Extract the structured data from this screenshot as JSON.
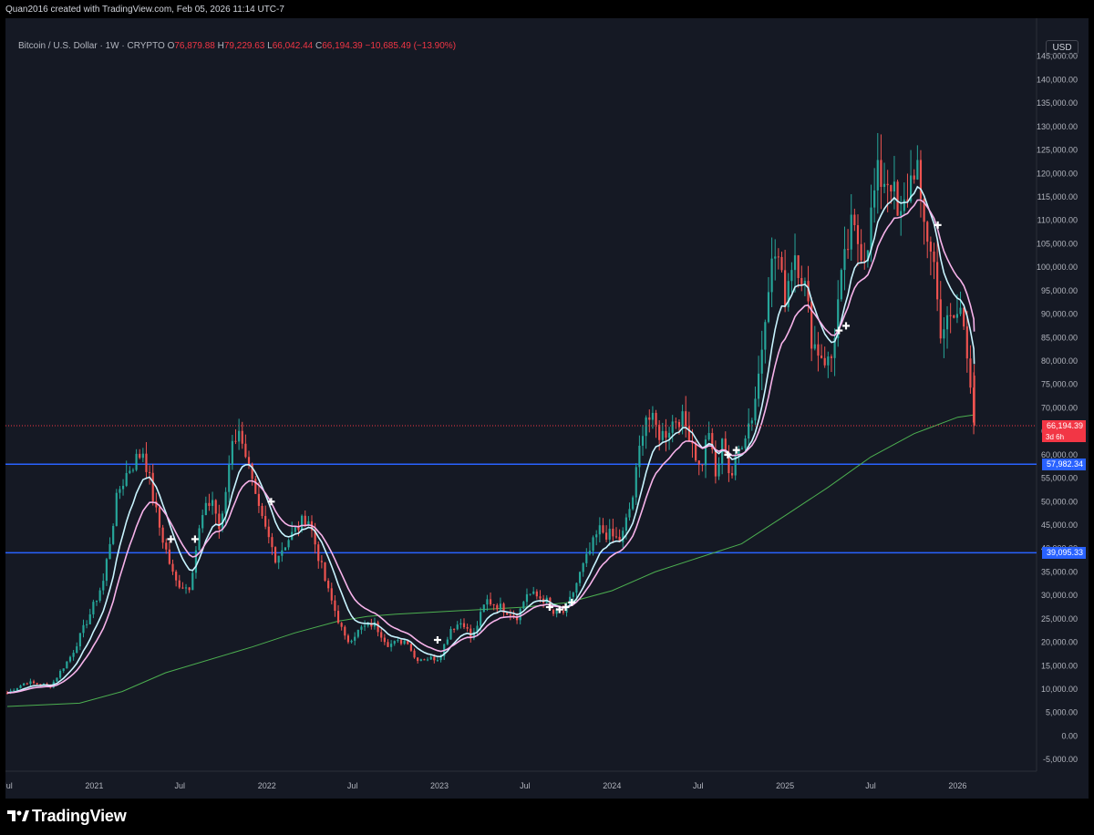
{
  "header": {
    "attribution": "Quan2016 created with TradingView.com, Feb 05, 2026 11:14 UTC-7"
  },
  "legend": {
    "symbol": "Bitcoin / U.S. Dollar · 1W · CRYPTO",
    "open_label": "O",
    "open": "76,879.88",
    "high_label": "H",
    "high": "79,229.63",
    "low_label": "L",
    "low": "66,042.44",
    "close_label": "C",
    "close": "66,194.39",
    "change": "−10,685.49 (−13.90%)"
  },
  "currency": "USD",
  "price_tags": {
    "last_price": "66,194.39",
    "countdown": "3d 6h",
    "level_upper": "57,982.34",
    "level_lower": "39,095.33"
  },
  "footer": {
    "brand": "TradingView"
  },
  "colors": {
    "background": "#151924",
    "up": "#26a69a",
    "down": "#ef5350",
    "fast_ma": "#c8f4ff",
    "slow_ma": "#f7b3ea",
    "long_ma": "#4caf50",
    "level_line": "#2962ff",
    "last_price": "#f23645"
  },
  "chart_data": {
    "type": "candlestick",
    "timeframe": "1W",
    "ylim": [
      -7500,
      150000
    ],
    "y_ticks": [
      -5000,
      0,
      5000,
      10000,
      15000,
      20000,
      25000,
      30000,
      35000,
      40000,
      45000,
      50000,
      55000,
      60000,
      65000,
      70000,
      75000,
      80000,
      85000,
      90000,
      95000,
      100000,
      105000,
      110000,
      115000,
      120000,
      125000,
      130000,
      135000,
      140000,
      145000
    ],
    "y_tick_labels": [
      "-5,000.00",
      "0.00",
      "5,000.00",
      "10,000.00",
      "15,000.00",
      "20,000.00",
      "25,000.00",
      "30,000.00",
      "35,000.00",
      "40,000.00",
      "45,000.00",
      "50,000.00",
      "55,000.00",
      "60,000.00",
      "65,000.00",
      "70,000.00",
      "75,000.00",
      "80,000.00",
      "85,000.00",
      "90,000.00",
      "95,000.00",
      "100,000.00",
      "105,000.00",
      "110,000.00",
      "115,000.00",
      "120,000.00",
      "125,000.00",
      "130,000.00",
      "135,000.00",
      "140,000.00",
      "145,000.00"
    ],
    "x_range": [
      "2020-07-01",
      "2026-06-15"
    ],
    "x_ticks": [
      {
        "date": "2020-07-01",
        "label": "Jul"
      },
      {
        "date": "2021-01-01",
        "label": "2021"
      },
      {
        "date": "2021-07-01",
        "label": "Jul"
      },
      {
        "date": "2022-01-01",
        "label": "2022"
      },
      {
        "date": "2022-07-01",
        "label": "Jul"
      },
      {
        "date": "2023-01-01",
        "label": "2023"
      },
      {
        "date": "2023-07-01",
        "label": "Jul"
      },
      {
        "date": "2024-01-01",
        "label": "2024"
      },
      {
        "date": "2024-07-01",
        "label": "Jul"
      },
      {
        "date": "2025-01-01",
        "label": "2025"
      },
      {
        "date": "2025-07-01",
        "label": "Jul"
      },
      {
        "date": "2026-01-01",
        "label": "2026"
      }
    ],
    "key_closes": [
      [
        "2020-07-01",
        9200
      ],
      [
        "2020-08-10",
        11500
      ],
      [
        "2020-10-01",
        10700
      ],
      [
        "2020-11-15",
        17500
      ],
      [
        "2020-12-25",
        26500
      ],
      [
        "2021-01-20",
        33000
      ],
      [
        "2021-02-20",
        52000
      ],
      [
        "2021-03-15",
        57000
      ],
      [
        "2021-04-15",
        61000
      ],
      [
        "2021-05-15",
        46000
      ],
      [
        "2021-06-20",
        33000
      ],
      [
        "2021-07-20",
        31500
      ],
      [
        "2021-08-15",
        46000
      ],
      [
        "2021-09-07",
        51000
      ],
      [
        "2021-09-25",
        43000
      ],
      [
        "2021-10-20",
        64000
      ],
      [
        "2021-11-10",
        64000
      ],
      [
        "2021-12-10",
        49000
      ],
      [
        "2022-01-20",
        38000
      ],
      [
        "2022-02-15",
        42000
      ],
      [
        "2022-03-28",
        47000
      ],
      [
        "2022-05-10",
        31000
      ],
      [
        "2022-06-18",
        20000
      ],
      [
        "2022-07-20",
        23000
      ],
      [
        "2022-08-15",
        24000
      ],
      [
        "2022-09-15",
        19500
      ],
      [
        "2022-10-25",
        20500
      ],
      [
        "2022-11-10",
        16500
      ],
      [
        "2022-12-31",
        16600
      ],
      [
        "2023-01-25",
        23000
      ],
      [
        "2023-02-20",
        24500
      ],
      [
        "2023-03-10",
        20500
      ],
      [
        "2023-04-10",
        29000
      ],
      [
        "2023-05-10",
        27500
      ],
      [
        "2023-06-15",
        25500
      ],
      [
        "2023-07-05",
        30500
      ],
      [
        "2023-08-15",
        29000
      ],
      [
        "2023-08-25",
        26000
      ],
      [
        "2023-09-25",
        26500
      ],
      [
        "2023-10-25",
        34500
      ],
      [
        "2023-12-05",
        44000
      ],
      [
        "2024-01-20",
        41500
      ],
      [
        "2024-02-15",
        51500
      ],
      [
        "2024-03-10",
        69000
      ],
      [
        "2024-04-15",
        64000
      ],
      [
        "2024-05-20",
        68500
      ],
      [
        "2024-06-15",
        64500
      ],
      [
        "2024-07-05",
        56500
      ],
      [
        "2024-07-25",
        66000
      ],
      [
        "2024-08-05",
        54000
      ],
      [
        "2024-08-25",
        64000
      ],
      [
        "2024-09-07",
        54500
      ],
      [
        "2024-10-01",
        63000
      ],
      [
        "2024-10-25",
        69000
      ],
      [
        "2024-11-10",
        80000
      ],
      [
        "2024-11-25",
        97000
      ],
      [
        "2024-12-15",
        104000
      ],
      [
        "2024-12-30",
        93000
      ],
      [
        "2025-01-20",
        104000
      ],
      [
        "2025-02-10",
        97000
      ],
      [
        "2025-02-28",
        84000
      ],
      [
        "2025-04-07",
        79000
      ],
      [
        "2025-04-25",
        94000
      ],
      [
        "2025-05-20",
        108000
      ],
      [
        "2025-06-20",
        103000
      ],
      [
        "2025-07-14",
        119000
      ],
      [
        "2025-08-14",
        119000
      ],
      [
        "2025-08-30",
        108000
      ],
      [
        "2025-09-15",
        115000
      ],
      [
        "2025-10-06",
        124000
      ],
      [
        "2025-10-15",
        111000
      ],
      [
        "2025-11-10",
        103000
      ],
      [
        "2025-11-24",
        87000
      ],
      [
        "2025-12-15",
        88000
      ],
      [
        "2026-01-10",
        91000
      ],
      [
        "2026-01-25",
        80000
      ],
      [
        "2026-02-05",
        66194
      ]
    ],
    "last_candle": {
      "open": 76879.88,
      "high": 79229.63,
      "low": 66042.44,
      "close": 66194.39,
      "change": -10685.49,
      "change_pct": -13.9
    },
    "horizontal_levels": [
      57982.34,
      39095.33
    ],
    "moving_averages": [
      {
        "color": "fast_ma",
        "smoothing_weeks": 9
      },
      {
        "color": "slow_ma",
        "smoothing_weeks": 16
      },
      {
        "color": "long_ma",
        "type": "200-week",
        "points": [
          [
            "2020-07-01",
            6300
          ],
          [
            "2020-12-01",
            7000
          ],
          [
            "2021-03-01",
            9500
          ],
          [
            "2021-06-01",
            13500
          ],
          [
            "2021-12-01",
            19000
          ],
          [
            "2022-03-01",
            22000
          ],
          [
            "2022-06-01",
            24500
          ],
          [
            "2022-08-01",
            25500
          ],
          [
            "2022-10-01",
            26000
          ],
          [
            "2023-01-01",
            26500
          ],
          [
            "2023-04-01",
            27000
          ],
          [
            "2023-07-01",
            27500
          ],
          [
            "2023-10-01",
            28500
          ],
          [
            "2024-01-01",
            31000
          ],
          [
            "2024-04-01",
            35000
          ],
          [
            "2024-07-01",
            38000
          ],
          [
            "2024-10-01",
            41000
          ],
          [
            "2025-01-01",
            47000
          ],
          [
            "2025-04-01",
            53000
          ],
          [
            "2025-07-01",
            59500
          ],
          [
            "2025-10-01",
            64500
          ],
          [
            "2026-01-01",
            68000
          ],
          [
            "2026-02-05",
            68500
          ]
        ]
      }
    ],
    "cross_markers": [
      [
        "2021-06-12",
        42000
      ],
      [
        "2021-08-02",
        42000
      ],
      [
        "2022-01-10",
        50000
      ],
      [
        "2022-12-28",
        20500
      ],
      [
        "2023-08-22",
        27500
      ],
      [
        "2023-09-12",
        27000
      ],
      [
        "2023-09-25",
        27500
      ],
      [
        "2023-10-08",
        28500
      ],
      [
        "2024-09-02",
        60000
      ],
      [
        "2024-09-20",
        61000
      ],
      [
        "2025-04-25",
        86500
      ],
      [
        "2025-05-10",
        87500
      ],
      [
        "2025-11-20",
        109000
      ]
    ]
  }
}
